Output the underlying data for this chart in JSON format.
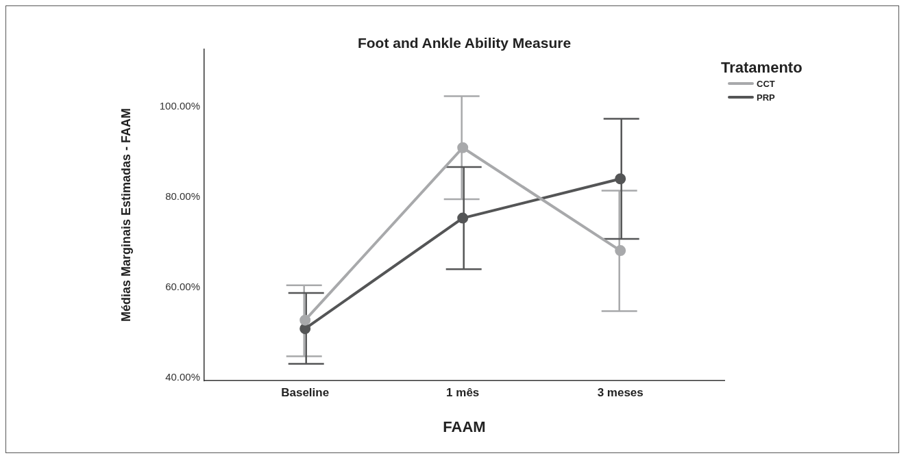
{
  "chart_data": {
    "type": "line",
    "title": "Foot and Ankle Ability Measure",
    "xlabel": "FAAM",
    "ylabel": "Médias Marginais Estimadas - FAAM",
    "legend_title": "Tratamento",
    "categories": [
      "Baseline",
      "1 mês",
      "3 meses"
    ],
    "series": [
      {
        "name": "CCT",
        "color": "#a8a9ab",
        "values": [
          52.7,
          90.9,
          68.1
        ],
        "errors": [
          [
            44.7,
            60.4
          ],
          [
            79.5,
            102.3
          ],
          [
            54.7,
            81.4
          ]
        ]
      },
      {
        "name": "PRP",
        "color": "#545556",
        "values": [
          50.8,
          75.3,
          84.0
        ],
        "errors": [
          [
            43.0,
            58.7
          ],
          [
            64.0,
            86.6
          ],
          [
            70.7,
            97.3
          ]
        ]
      }
    ],
    "ylim": [
      39.3,
      112.7
    ],
    "yticks": [
      {
        "value": 40,
        "label": "40.00%"
      },
      {
        "value": 60,
        "label": "60.00%"
      },
      {
        "value": 80,
        "label": "80.00%"
      },
      {
        "value": 100,
        "label": "100.00%"
      }
    ],
    "grid": false,
    "legend": "top right",
    "marker": "circle",
    "line_style": "solid"
  }
}
